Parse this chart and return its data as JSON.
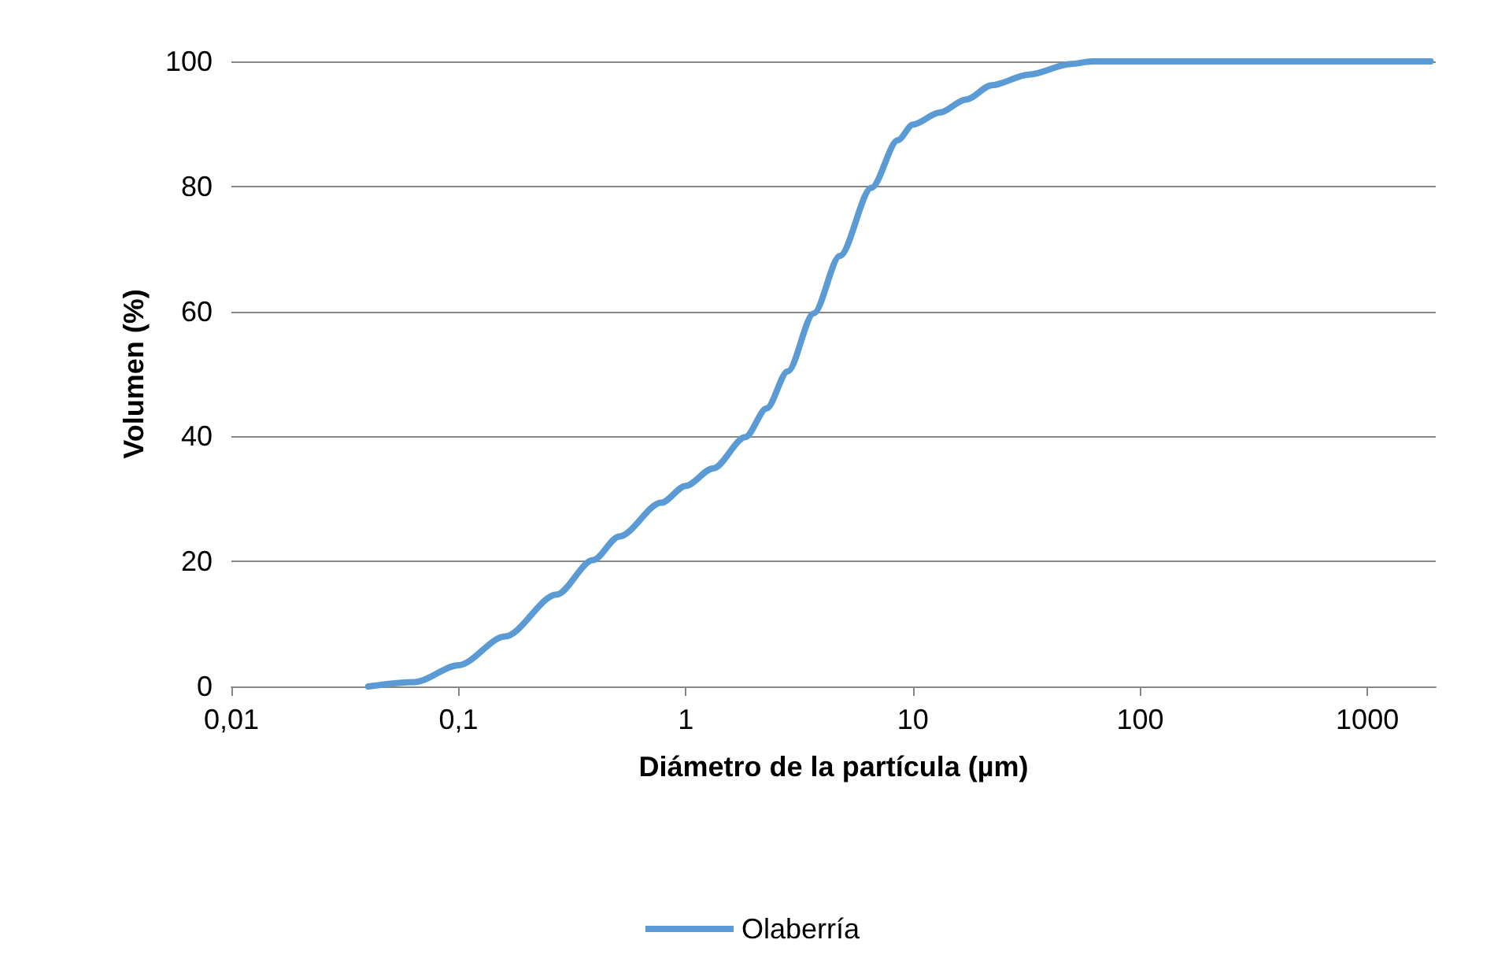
{
  "chart_data": {
    "type": "line",
    "xlabel": "Diámetro de la partícula (µm)",
    "ylabel": "Volumen (%)",
    "x": [
      0.04,
      0.064,
      0.1,
      0.16,
      0.27,
      0.39,
      0.51,
      0.78,
      1,
      1.32,
      1.83,
      2.27,
      2.81,
      3.66,
      4.77,
      6.57,
      8.58,
      10,
      13.1,
      17.1,
      22.3,
      32.4,
      49.5,
      61.3,
      200,
      1900
    ],
    "series": [
      {
        "name": "Olaberría",
        "color": "#5b9bd5",
        "values": [
          0,
          0.7,
          3.4,
          8.0,
          14.7,
          20.2,
          24,
          29.4,
          32.1,
          34.9,
          39.9,
          44.5,
          50.4,
          59.7,
          68.9,
          79.8,
          87.4,
          89.9,
          91.8,
          93.9,
          96.2,
          97.9,
          99.6,
          100,
          100,
          100
        ]
      }
    ],
    "log": "x",
    "xlim": [
      0.01,
      2000
    ],
    "xticks": [
      {
        "value": 0.01,
        "label": "0,01"
      },
      {
        "value": 0.1,
        "label": "0,1"
      },
      1,
      10,
      100,
      1000
    ],
    "ylim": [
      0,
      100
    ],
    "yticks": [
      0,
      20,
      40,
      60,
      80,
      100
    ],
    "grid": "y",
    "legend": "bottom",
    "marker": "none",
    "line_style": "solid"
  }
}
